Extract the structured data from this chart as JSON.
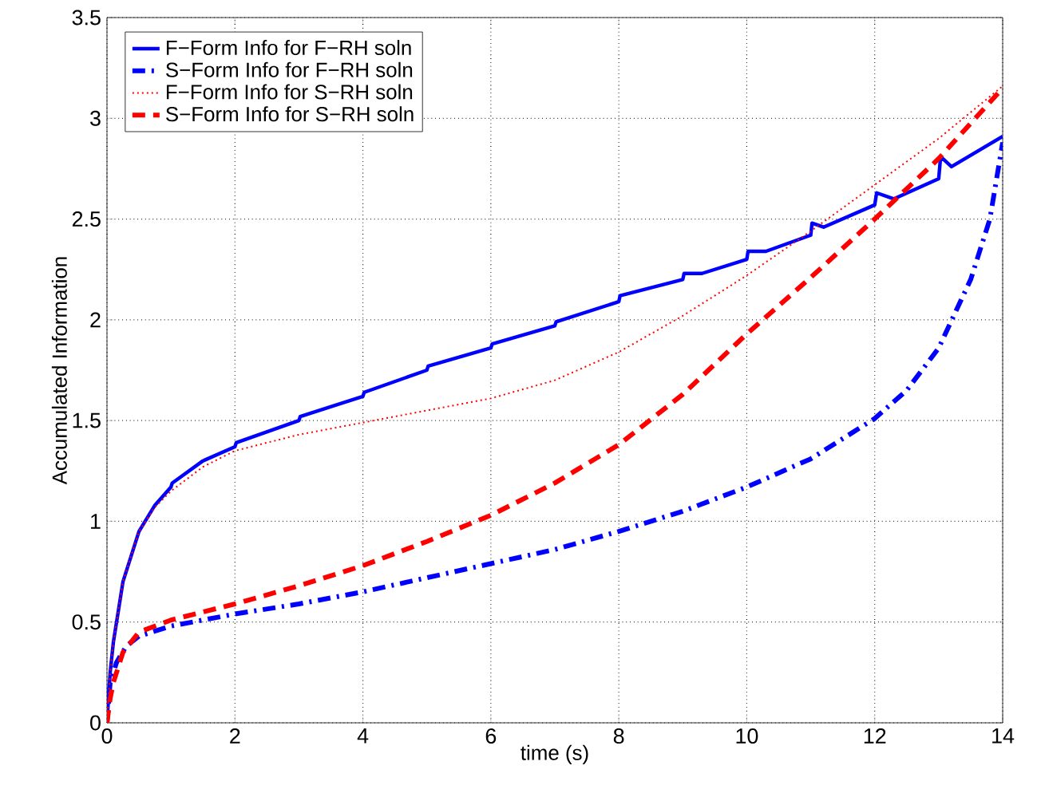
{
  "chart_data": {
    "type": "line",
    "xlabel": "time (s)",
    "ylabel": "Accumulated Information",
    "xlim": [
      0,
      14
    ],
    "ylim": [
      0,
      3.5
    ],
    "xticks": [
      0,
      2,
      4,
      6,
      8,
      10,
      12,
      14
    ],
    "yticks": [
      0,
      0.5,
      1,
      1.5,
      2,
      2.5,
      3,
      3.5
    ],
    "grid": true,
    "legend": "top left",
    "marker": "none",
    "series": [
      {
        "name": "F−Form Info for F−RH soln",
        "color": "#0000ff",
        "line_style": "solid",
        "x": [
          0,
          0.05,
          0.1,
          0.25,
          0.5,
          0.75,
          1,
          1.02,
          1.5,
          2,
          2.02,
          3,
          3.02,
          4,
          4.02,
          5,
          5.02,
          6,
          6.02,
          7,
          7.02,
          8,
          8.02,
          9,
          9.02,
          9.3,
          10,
          10.02,
          10.3,
          11,
          11.02,
          11.2,
          12,
          12.03,
          12.3,
          13,
          13.03,
          13.2,
          14
        ],
        "values": [
          0,
          0.25,
          0.4,
          0.7,
          0.95,
          1.08,
          1.17,
          1.19,
          1.3,
          1.37,
          1.39,
          1.5,
          1.52,
          1.62,
          1.64,
          1.75,
          1.77,
          1.86,
          1.88,
          1.97,
          1.99,
          2.09,
          2.12,
          2.2,
          2.23,
          2.23,
          2.3,
          2.34,
          2.34,
          2.42,
          2.48,
          2.46,
          2.57,
          2.63,
          2.6,
          2.7,
          2.81,
          2.76,
          2.91
        ]
      },
      {
        "name": "S−Form Info for F−RH soln",
        "color": "#0000ff",
        "line_style": "dashdot",
        "x": [
          0,
          0.05,
          0.15,
          0.3,
          0.5,
          1,
          2,
          3,
          4,
          5,
          6,
          7,
          8,
          9,
          10,
          11,
          12,
          12.5,
          13,
          13.5,
          13.8,
          14
        ],
        "values": [
          0,
          0.2,
          0.3,
          0.38,
          0.43,
          0.48,
          0.54,
          0.59,
          0.65,
          0.72,
          0.79,
          0.86,
          0.95,
          1.05,
          1.17,
          1.31,
          1.51,
          1.65,
          1.86,
          2.2,
          2.5,
          2.88
        ]
      },
      {
        "name": "F−Form Info for S−RH soln",
        "color": "#ff0000",
        "line_style": "dotted",
        "x": [
          0,
          0.05,
          0.1,
          0.25,
          0.5,
          0.75,
          1,
          1.5,
          2,
          3,
          4,
          5,
          6,
          7,
          8,
          9,
          10,
          11,
          12,
          13,
          14
        ],
        "values": [
          0,
          0.25,
          0.4,
          0.7,
          0.95,
          1.07,
          1.15,
          1.27,
          1.35,
          1.43,
          1.49,
          1.55,
          1.61,
          1.7,
          1.84,
          2.02,
          2.22,
          2.44,
          2.67,
          2.9,
          3.16
        ]
      },
      {
        "name": "S−Form Info for S−RH soln",
        "color": "#ff0000",
        "line_style": "dashed",
        "x": [
          0,
          0.05,
          0.1,
          0.25,
          0.5,
          1,
          2,
          3,
          4,
          5,
          6,
          7,
          8,
          9,
          10,
          11,
          12,
          13,
          14
        ],
        "values": [
          0,
          0.12,
          0.2,
          0.35,
          0.45,
          0.51,
          0.59,
          0.68,
          0.78,
          0.9,
          1.03,
          1.19,
          1.38,
          1.63,
          1.93,
          2.21,
          2.5,
          2.8,
          3.15
        ]
      }
    ]
  }
}
